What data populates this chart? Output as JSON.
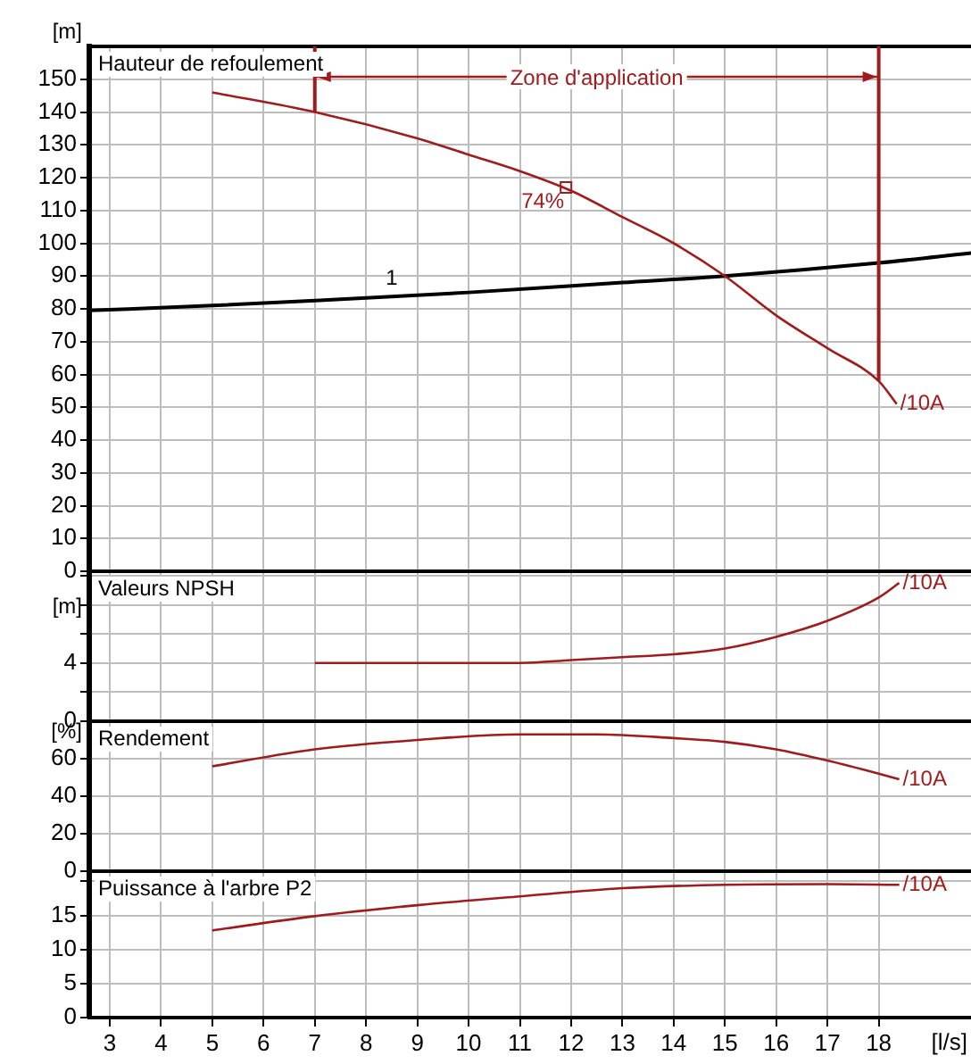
{
  "chart_data": [
    {
      "type": "line",
      "title": "Hauteur de refoulement",
      "ylabel": "[m]",
      "xlim": [
        2.6,
        19.8
      ],
      "ylim": [
        0,
        160
      ],
      "yticks": [
        0,
        10,
        20,
        30,
        40,
        50,
        60,
        70,
        80,
        90,
        100,
        110,
        120,
        130,
        140,
        150
      ],
      "xticks": [
        3,
        4,
        5,
        6,
        7,
        8,
        9,
        10,
        11,
        12,
        13,
        14,
        15,
        16,
        17,
        18
      ],
      "tick_labels": "y",
      "grid": true,
      "series": [
        {
          "name": "/10A",
          "color": "#a01c1c",
          "x": [
            5,
            7,
            9,
            10,
            11,
            12,
            13,
            14,
            15,
            16,
            17,
            18,
            18.35
          ],
          "values": [
            146,
            140,
            132,
            127,
            122,
            116,
            108,
            100,
            90,
            78,
            68,
            58,
            51
          ]
        },
        {
          "name": "1",
          "color": "#000000",
          "x": [
            2.6,
            5,
            7,
            10,
            13,
            15,
            18,
            19.8
          ],
          "values": [
            79.5,
            81,
            82.5,
            85,
            88,
            90,
            94,
            97
          ]
        }
      ],
      "ref_lines": [
        {
          "axis": "x",
          "value": 7,
          "color": "#a01c1c"
        },
        {
          "axis": "x",
          "value": 18,
          "color": "#a01c1c"
        }
      ],
      "annotations": [
        "Zone d'application",
        {
          "text": "74%",
          "x": 11.9,
          "y": 117
        }
      ]
    },
    {
      "type": "line",
      "title": "Valeurs NPSH",
      "ylabel": "[m]",
      "xlim": [
        2.6,
        19.8
      ],
      "ylim": [
        0,
        10.3
      ],
      "yticks": [
        0,
        {
          "value": 2,
          "label": null
        },
        4,
        {
          "value": 6,
          "label": null
        },
        {
          "value": 8,
          "label": null
        },
        {
          "value": 10,
          "label": null
        }
      ],
      "xticks": [
        3,
        4,
        5,
        6,
        7,
        8,
        9,
        10,
        11,
        12,
        13,
        14,
        15,
        16,
        17,
        18
      ],
      "tick_labels": "y",
      "grid": true,
      "series": [
        {
          "name": "/10A",
          "color": "#a01c1c",
          "x": [
            7,
            9,
            11,
            12,
            13,
            14,
            15,
            16,
            17,
            18,
            18.4
          ],
          "values": [
            4.0,
            4.0,
            4.0,
            4.2,
            4.4,
            4.6,
            5.0,
            5.8,
            6.9,
            8.5,
            9.5
          ]
        }
      ]
    },
    {
      "type": "line",
      "title": "Rendement",
      "ylabel": "[%]",
      "xlim": [
        2.6,
        19.8
      ],
      "ylim": [
        0,
        80
      ],
      "yticks": [
        0,
        20,
        40,
        60,
        {
          "value": 80,
          "label": null
        }
      ],
      "xticks": [
        3,
        4,
        5,
        6,
        7,
        8,
        9,
        10,
        11,
        12,
        13,
        14,
        15,
        16,
        17,
        18
      ],
      "tick_labels": "y",
      "grid": true,
      "series": [
        {
          "name": "/10A",
          "color": "#a01c1c",
          "x": [
            5,
            7,
            9,
            11,
            12.5,
            14,
            15,
            16,
            17,
            18,
            18.4
          ],
          "values": [
            56,
            65,
            70,
            73,
            73,
            71,
            69,
            65,
            59,
            52,
            49
          ]
        }
      ]
    },
    {
      "type": "line",
      "title": "Puissance à l'arbre P2",
      "xlabel": "[l/s]",
      "xlim": [
        2.6,
        19.8
      ],
      "ylim": [
        0,
        21.5
      ],
      "yticks": [
        0,
        5,
        10,
        15,
        {
          "value": 20,
          "label": null
        }
      ],
      "xticks": [
        3,
        4,
        5,
        6,
        7,
        8,
        9,
        10,
        11,
        12,
        13,
        14,
        15,
        16,
        17,
        18
      ],
      "grid": true,
      "series": [
        {
          "name": "/10A",
          "color": "#a01c1c",
          "x": [
            5,
            7,
            9,
            11,
            13,
            15,
            17,
            18.4
          ],
          "values": [
            12.8,
            14.9,
            16.5,
            17.8,
            19.0,
            19.5,
            19.6,
            19.5
          ]
        }
      ]
    }
  ]
}
